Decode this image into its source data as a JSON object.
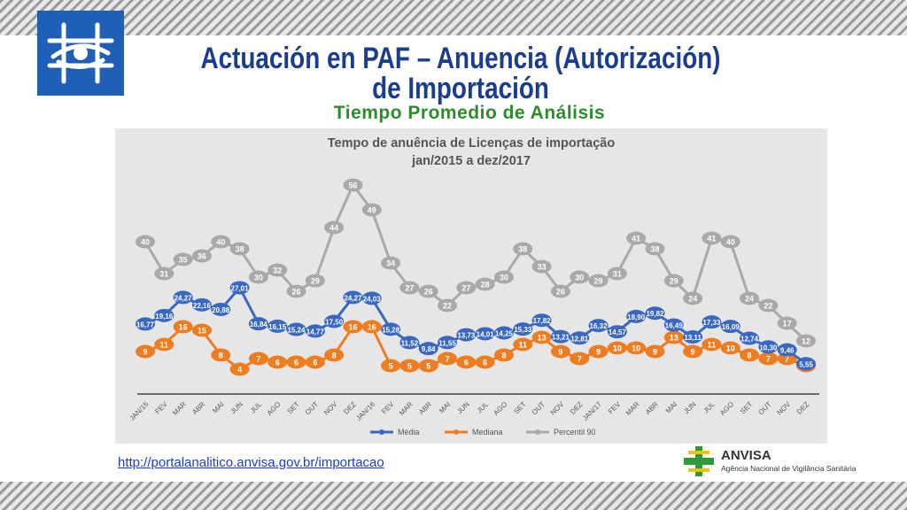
{
  "slide": {
    "title_line1": "Actuación en PAF – Anuencia (Autorización)",
    "title_line2": "de Importación",
    "subtitle": "Tiempo Promedio de Análisis",
    "url": "http://portalanalitico.anvisa.gov.br/importacao",
    "footer_logo": {
      "name": "ANVISA",
      "tagline": "Agência Nacional de Vigilância Sanitária"
    }
  },
  "colors": {
    "title": "#1b3d8f",
    "subtitle": "#2e8b2e",
    "media": "#3a67c0",
    "mediana": "#ee7d22",
    "percentil": "#a9a9a9",
    "url": "#1a3bd1"
  },
  "chart_data": {
    "type": "line",
    "title": "Tempo de anuência de Licenças de  importação",
    "subtitle": "jan/2015 a dez/2017",
    "legend_position": "bottom",
    "grid": false,
    "categories": [
      "JAN/15",
      "FEV",
      "MAR",
      "ABR",
      "MAI",
      "JUN",
      "JUL",
      "AGO",
      "SET",
      "OUT",
      "NOV",
      "DEZ",
      "JAN/16",
      "FEV",
      "MAR",
      "ABR",
      "MAI",
      "JUN",
      "JUL",
      "AGO",
      "SET",
      "OUT",
      "NOV",
      "DEZ",
      "JAN/17",
      "FEV",
      "MAR",
      "ABR",
      "MAI",
      "JUN",
      "JUL",
      "AGO",
      "SET",
      "OUT",
      "NOV",
      "DEZ"
    ],
    "series": [
      {
        "name": "Média",
        "values": [
          16.77,
          19.16,
          24.27,
          22.16,
          20.88,
          27.01,
          16.84,
          16.15,
          15.24,
          14.77,
          17.5,
          24.27,
          24.03,
          15.28,
          11.52,
          9.84,
          11.55,
          13.73,
          14.01,
          14.25,
          15.33,
          17.82,
          13.21,
          12.81,
          16.32,
          14.57,
          18.9,
          19.82,
          16.49,
          13.11,
          17.33,
          16.09,
          12.74,
          10.3,
          9.46,
          5.55
        ],
        "labels": [
          "16,77",
          "19,16",
          "24,27",
          "22,16",
          "20,88",
          "27,01",
          "16,84",
          "16,15",
          "15,24",
          "14,77",
          "17,50",
          "24,27",
          "24,03",
          "15,28",
          "11,52",
          "9,84",
          "11,55",
          "13,73",
          "14,01",
          "14,25",
          "15,33",
          "17,82",
          "13,21",
          "12,81",
          "16,32",
          "14,57",
          "18,90",
          "19,82",
          "16,49",
          "13,11",
          "17,33",
          "16,09",
          "12,74",
          "10,30",
          "9,46",
          "5,55"
        ]
      },
      {
        "name": "Mediana",
        "values": [
          9,
          11,
          16,
          15,
          8,
          4,
          7,
          6,
          6,
          6,
          8,
          16,
          16,
          5,
          5,
          5,
          7,
          6,
          6,
          8,
          11,
          13,
          9,
          7,
          9,
          10,
          10,
          9,
          13,
          9,
          11,
          10,
          8,
          7,
          7,
          5
        ],
        "labels": [
          "9",
          "11",
          "16",
          "15",
          "8",
          "4",
          "7",
          "6",
          "6",
          "6",
          "8",
          "16",
          "16",
          "5",
          "5",
          "5",
          "7",
          "6",
          "6",
          "8",
          "11",
          "13",
          "9",
          "7",
          "9",
          "10",
          "10",
          "9",
          "13",
          "9",
          "11",
          "10",
          "8",
          "7",
          "7",
          "5"
        ]
      },
      {
        "name": "Percentil 90",
        "values": [
          40,
          31,
          35,
          36,
          40,
          38,
          30,
          32,
          26,
          29,
          44,
          56,
          49,
          34,
          27,
          26,
          22,
          27,
          28,
          30,
          38,
          33,
          26,
          30,
          29,
          31,
          41,
          38,
          29,
          24,
          41,
          40,
          24,
          22,
          17,
          12
        ],
        "labels": [
          "40",
          "31",
          "35",
          "36",
          "40",
          "38",
          "30",
          "32",
          "26",
          "29",
          "44",
          "56",
          "49",
          "34",
          "27",
          "26",
          "22",
          "27",
          "28",
          "30",
          "38",
          "33",
          "26",
          "30",
          "29",
          "31",
          "41",
          "38",
          "29",
          "24",
          "41",
          "40",
          "24",
          "22",
          "17",
          "12"
        ]
      }
    ]
  }
}
